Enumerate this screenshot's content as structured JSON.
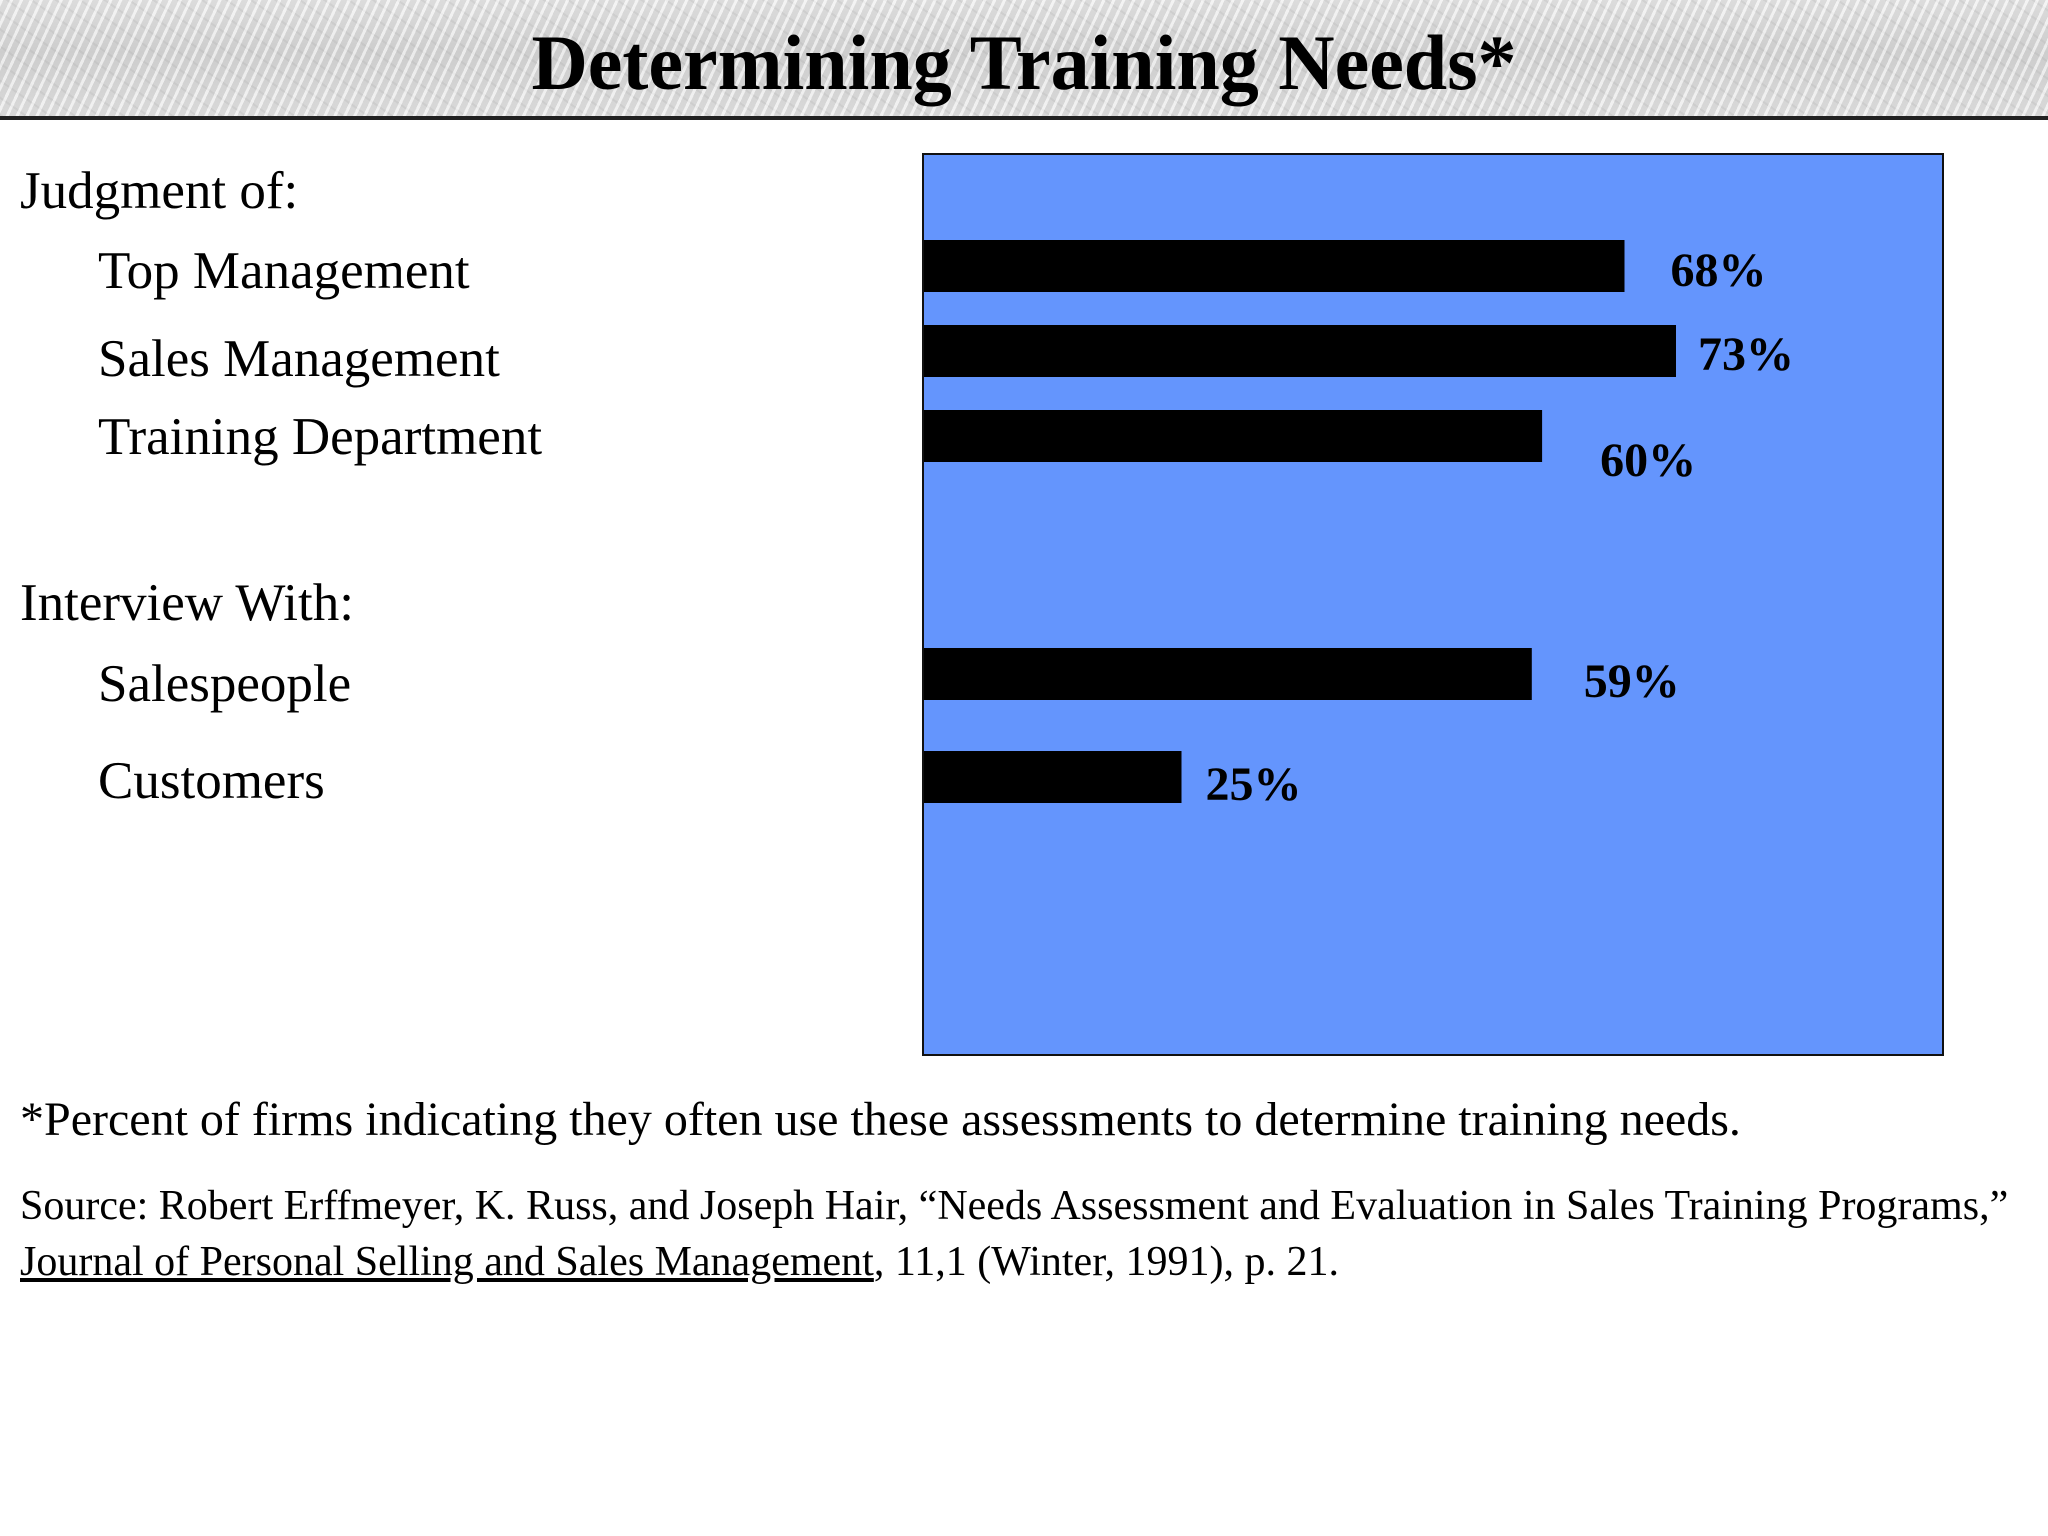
{
  "title": "Determining Training Needs*",
  "groups": [
    {
      "label": "Judgment of:",
      "items": [
        "Top Management",
        "Sales Management",
        "Training Department"
      ]
    },
    {
      "label": "Interview With:",
      "items": [
        "Salespeople",
        "Customers"
      ]
    }
  ],
  "chart_data": {
    "type": "bar",
    "orientation": "horizontal",
    "categories": [
      "Top Management",
      "Sales Management",
      "Training Department",
      "Salespeople",
      "Customers"
    ],
    "values": [
      68,
      73,
      60,
      59,
      25
    ],
    "data_labels": [
      "68%",
      "73%",
      "60%",
      "59%",
      "25%"
    ],
    "unit": "%",
    "title": "",
    "xlabel": "",
    "ylabel": "",
    "xlim": [
      0,
      100
    ],
    "grid": false,
    "legend": "none",
    "bar_color": "#000000",
    "background_color": "#6495fd"
  },
  "footnote": "*Percent of firms indicating they often use these assessments to determine training needs.",
  "source": {
    "prefix": "Source: Robert Erffmeyer, K. Russ, and Joseph Hair, “Needs Assessment and Evaluation in Sales Training Programs,” ",
    "journal": "Journal of Personal Selling and Sales Management",
    "suffix": ", 11,1 (Winter, 1991), p. 21."
  }
}
